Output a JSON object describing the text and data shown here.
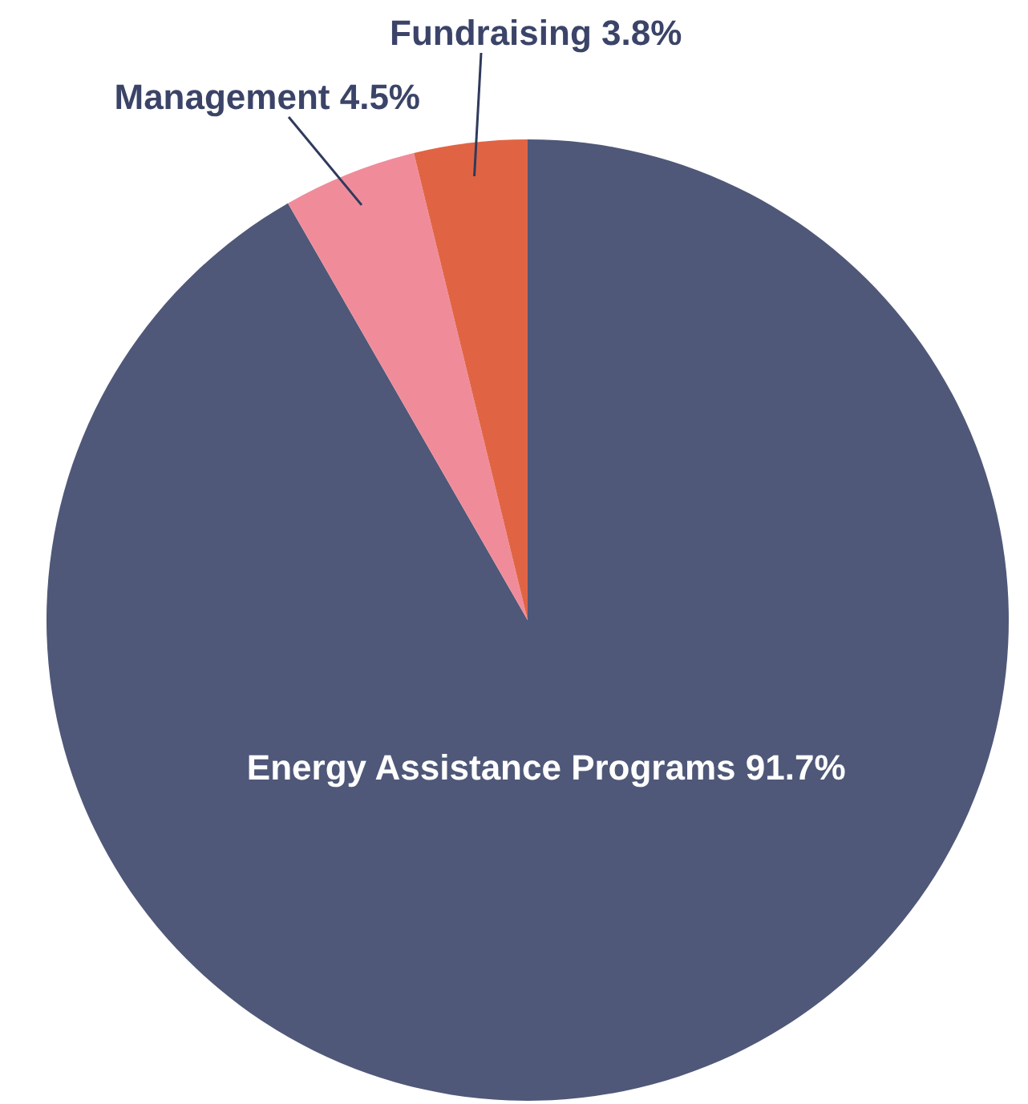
{
  "chart_data": {
    "type": "pie",
    "categories": [
      "Energy Assistance Programs",
      "Management",
      "Fundraising"
    ],
    "values": [
      91.7,
      4.5,
      3.8
    ],
    "colors": [
      "#4f5878",
      "#f08c9a",
      "#e06444"
    ],
    "value_labels": [
      "91.7%",
      "4.5%",
      "3.8%"
    ]
  }
}
